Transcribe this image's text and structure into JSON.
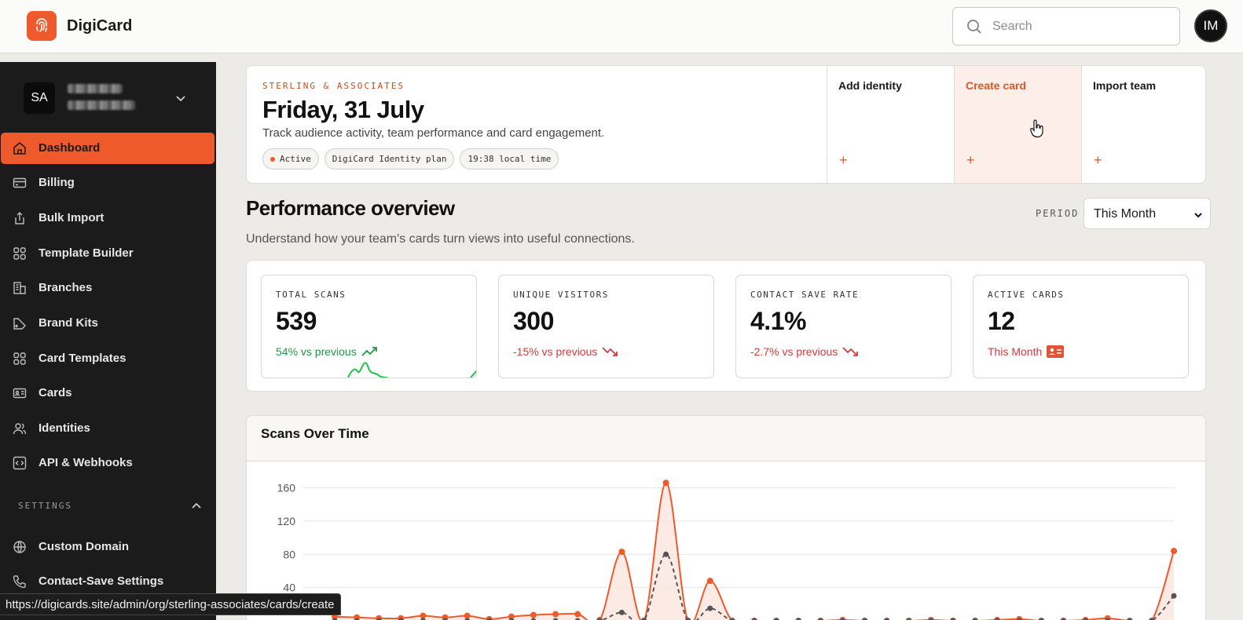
{
  "app": {
    "brand": "DigiCard"
  },
  "search": {
    "placeholder": "Search"
  },
  "user": {
    "initials": "IM"
  },
  "sidebar": {
    "org_initials": "SA",
    "items": [
      {
        "label": "Dashboard",
        "icon": "home-icon",
        "active": true
      },
      {
        "label": "Billing",
        "icon": "credit-card-icon"
      },
      {
        "label": "Bulk Import",
        "icon": "upload-icon"
      },
      {
        "label": "Template Builder",
        "icon": "grid-icon"
      },
      {
        "label": "Branches",
        "icon": "building-icon"
      },
      {
        "label": "Brand Kits",
        "icon": "palette-icon"
      },
      {
        "label": "Card Templates",
        "icon": "grid-icon"
      },
      {
        "label": "Cards",
        "icon": "id-card-icon"
      },
      {
        "label": "Identities",
        "icon": "users-icon"
      },
      {
        "label": "API & Webhooks",
        "icon": "code-icon"
      }
    ],
    "settings_header": "SETTINGS",
    "settings_items": [
      {
        "label": "Custom Domain",
        "icon": "globe-icon"
      },
      {
        "label": "Contact-Save Settings",
        "icon": "phone-icon"
      }
    ]
  },
  "hero": {
    "org": "STERLING & ASSOCIATES",
    "date": "Friday, 31 July",
    "subtitle": "Track audience activity, team performance and card engagement.",
    "chips": [
      "Active",
      "DigiCard Identity plan",
      "19:38 local time"
    ],
    "actions": [
      {
        "label": "Add identity",
        "plus": "+"
      },
      {
        "label": "Create card",
        "plus": "+"
      },
      {
        "label": "Import team",
        "plus": "+"
      }
    ]
  },
  "performance": {
    "title": "Performance overview",
    "subtitle": "Understand how your team's cards turn views into useful connections.",
    "period_label": "PERIOD",
    "period_value": "This Month"
  },
  "kpis": [
    {
      "label": "TOTAL SCANS",
      "value": "539",
      "trend": "54% vs previous",
      "direction": "up"
    },
    {
      "label": "UNIQUE VISITORS",
      "value": "300",
      "trend": "-15% vs previous",
      "direction": "down"
    },
    {
      "label": "CONTACT SAVE RATE",
      "value": "4.1%",
      "trend": "-2.7% vs previous",
      "direction": "down"
    },
    {
      "label": "ACTIVE CARDS",
      "value": "12",
      "trend": "This Month",
      "direction": "neutral"
    }
  ],
  "chart_data": {
    "type": "line",
    "title": "Scans Over Time",
    "ylim": [
      0,
      170
    ],
    "yticks": [
      40,
      80,
      120,
      160
    ],
    "series": [
      {
        "values": [
          5,
          4,
          3,
          3,
          6,
          4,
          6,
          2,
          5,
          7,
          8,
          8,
          1,
          83,
          0,
          166,
          0,
          48,
          0,
          0,
          0,
          0,
          0,
          1,
          0,
          0,
          0,
          1,
          0,
          0,
          1,
          2,
          0,
          0,
          1,
          3,
          0,
          0,
          84
        ],
        "color": "#ee5a2c"
      },
      {
        "values": [
          0,
          0,
          0,
          0,
          0,
          0,
          0,
          0,
          0,
          0,
          0,
          0,
          0,
          10,
          0,
          80,
          0,
          15,
          0,
          0,
          0,
          0,
          0,
          0,
          0,
          0,
          0,
          0,
          0,
          0,
          0,
          0,
          0,
          0,
          0,
          0,
          0,
          0,
          30
        ],
        "color": "#555555",
        "dashed": true
      }
    ],
    "grid": true
  },
  "status_url": "https://digicards.site/admin/org/sterling-associates/cards/create"
}
